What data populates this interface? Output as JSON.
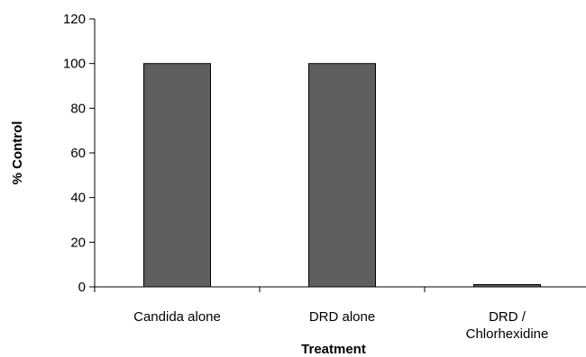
{
  "chart_data": {
    "type": "bar",
    "title": "",
    "xlabel": "Treatment",
    "ylabel": "% Control",
    "ylim": [
      0,
      120
    ],
    "yticks": [
      0,
      20,
      40,
      60,
      80,
      100,
      120
    ],
    "categories": [
      [
        "Candida alone"
      ],
      [
        "DRD alone"
      ],
      [
        "DRD /",
        "Chlorhexidine"
      ]
    ],
    "values": [
      100,
      100,
      1
    ],
    "grid": false,
    "legend": "none",
    "colors": {
      "bar_fill": "#5f5f5f",
      "bar_stroke": "#000000",
      "axis": "#000000"
    }
  }
}
